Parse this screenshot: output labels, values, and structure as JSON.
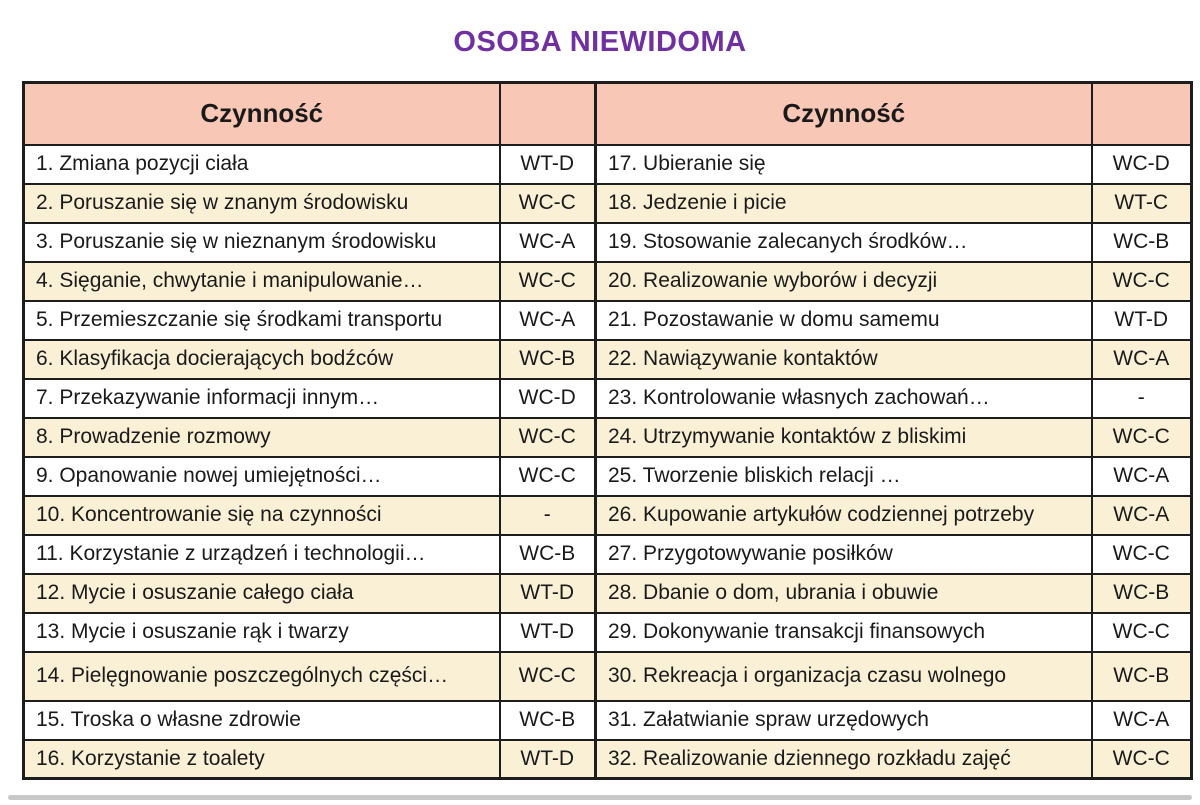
{
  "title": "OSOBA NIEWIDOMA",
  "colors": {
    "title-color": "#7030A0",
    "header-bg": "#F9C7B5",
    "stripe-bg": "#FAF0D5",
    "border-color": "#1D1D1D"
  },
  "table": {
    "header_label": "Czynność",
    "rows": [
      {
        "left_activity": "1. Zmiana pozycji ciała",
        "left_code": "WT-D",
        "right_activity": "17. Ubieranie się",
        "right_code": "WC-D"
      },
      {
        "left_activity": "2. Poruszanie się w znanym środowisku",
        "left_code": "WC-C",
        "right_activity": "18. Jedzenie i picie",
        "right_code": "WT-C"
      },
      {
        "left_activity": "3. Poruszanie się w nieznanym środowisku",
        "left_code": "WC-A",
        "right_activity": "19. Stosowanie zalecanych środków…",
        "right_code": "WC-B"
      },
      {
        "left_activity": "4. Sięganie, chwytanie i manipulowanie…",
        "left_code": "WC-C",
        "right_activity": "20. Realizowanie wyborów i decyzji",
        "right_code": "WC-C"
      },
      {
        "left_activity": "5. Przemieszczanie się środkami transportu",
        "left_code": "WC-A",
        "right_activity": "21. Pozostawanie w domu samemu",
        "right_code": "WT-D"
      },
      {
        "left_activity": "6. Klasyfikacja docierających bodźców",
        "left_code": "WC-B",
        "right_activity": "22. Nawiązywanie kontaktów",
        "right_code": "WC-A"
      },
      {
        "left_activity": "7. Przekazywanie informacji innym…",
        "left_code": "WC-D",
        "right_activity": "23. Kontrolowanie własnych zachowań…",
        "right_code": "-"
      },
      {
        "left_activity": "8. Prowadzenie rozmowy",
        "left_code": "WC-C",
        "right_activity": "24. Utrzymywanie kontaktów z bliskimi",
        "right_code": "WC-C"
      },
      {
        "left_activity": "9. Opanowanie nowej umiejętności…",
        "left_code": "WC-C",
        "right_activity": "25. Tworzenie bliskich relacji …",
        "right_code": "WC-A"
      },
      {
        "left_activity": "10. Koncentrowanie się na czynności",
        "left_code": "-",
        "right_activity": "26. Kupowanie artykułów codziennej potrzeby",
        "right_code": "WC-A"
      },
      {
        "left_activity": "11. Korzystanie z urządzeń i technologii…",
        "left_code": "WC-B",
        "right_activity": "27. Przygotowywanie posiłków",
        "right_code": "WC-C"
      },
      {
        "left_activity": "12. Mycie i osuszanie całego ciała",
        "left_code": "WT-D",
        "right_activity": "28. Dbanie o dom, ubrania i obuwie",
        "right_code": "WC-B"
      },
      {
        "left_activity": "13. Mycie i osuszanie rąk i twarzy",
        "left_code": "WT-D",
        "right_activity": "29. Dokonywanie transakcji finansowych",
        "right_code": "WC-C"
      },
      {
        "left_activity": "14. Pielęgnowanie poszczególnych części…",
        "left_code": "WC-C",
        "right_activity": "30. Rekreacja i organizacja czasu wolnego",
        "right_code": "WC-B",
        "tall": true
      },
      {
        "left_activity": "15. Troska o własne zdrowie",
        "left_code": "WC-B",
        "right_activity": "31. Załatwianie spraw urzędowych",
        "right_code": "WC-A"
      },
      {
        "left_activity": "16. Korzystanie z toalety",
        "left_code": "WT-D",
        "right_activity": "32. Realizowanie dziennego rozkładu zajęć",
        "right_code": "WC-C"
      }
    ]
  }
}
